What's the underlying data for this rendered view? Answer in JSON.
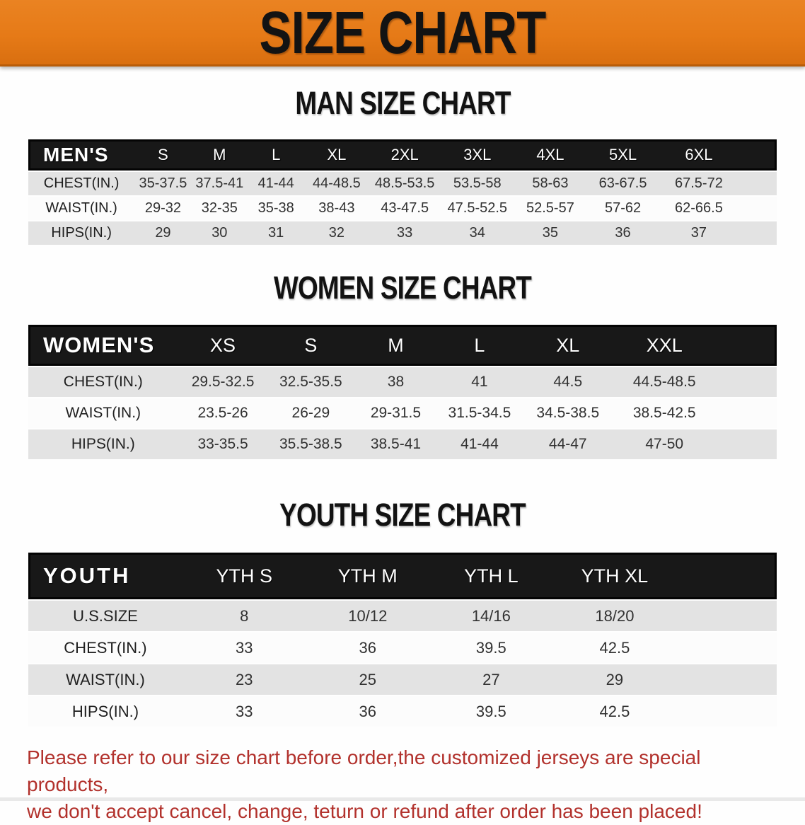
{
  "banner": {
    "title": "SIZE CHART",
    "bg_color": "#e67a17",
    "text_color": "#131313"
  },
  "sections": [
    {
      "id": "men",
      "heading": "MAN SIZE CHART",
      "label": "MEN'S",
      "columns": [
        "S",
        "M",
        "L",
        "XL",
        "2XL",
        "3XL",
        "4XL",
        "5XL",
        "6XL"
      ],
      "rows": [
        {
          "label": "CHEST(IN.)",
          "values": [
            "35-37.5",
            "37.5-41",
            "41-44",
            "44-48.5",
            "48.5-53.5",
            "53.5-58",
            "58-63",
            "63-67.5",
            "67.5-72"
          ]
        },
        {
          "label": "WAIST(IN.)",
          "values": [
            "29-32",
            "32-35",
            "35-38",
            "38-43",
            "43-47.5",
            "47.5-52.5",
            "52.5-57",
            "57-62",
            "62-66.5"
          ]
        },
        {
          "label": "HIPS(IN.)",
          "values": [
            "29",
            "30",
            "31",
            "32",
            "33",
            "34",
            "35",
            "36",
            "37"
          ]
        }
      ]
    },
    {
      "id": "women",
      "heading": "WOMEN SIZE CHART",
      "label": "WOMEN'S",
      "columns": [
        "XS",
        "S",
        "M",
        "L",
        "XL",
        "XXL"
      ],
      "rows": [
        {
          "label": "CHEST(IN.)",
          "values": [
            "29.5-32.5",
            "32.5-35.5",
            "38",
            "41",
            "44.5",
            "44.5-48.5"
          ]
        },
        {
          "label": "WAIST(IN.)",
          "values": [
            "23.5-26",
            "26-29",
            "29-31.5",
            "31.5-34.5",
            "34.5-38.5",
            "38.5-42.5"
          ]
        },
        {
          "label": "HIPS(IN.)",
          "values": [
            "33-35.5",
            "35.5-38.5",
            "38.5-41",
            "41-44",
            "44-47",
            "47-50"
          ]
        }
      ]
    },
    {
      "id": "youth",
      "heading": "YOUTH SIZE CHART",
      "label": "YOUTH",
      "columns": [
        "YTH S",
        "YTH M",
        "YTH L",
        "YTH XL"
      ],
      "rows": [
        {
          "label": "U.S.SIZE",
          "values": [
            "8",
            "10/12",
            "14/16",
            "18/20"
          ]
        },
        {
          "label": "CHEST(IN.)",
          "values": [
            "33",
            "36",
            "39.5",
            "42.5"
          ]
        },
        {
          "label": "WAIST(IN.)",
          "values": [
            "23",
            "25",
            "27",
            "29"
          ]
        },
        {
          "label": "HIPS(IN.)",
          "values": [
            "33",
            "36",
            "39.5",
            "42.5"
          ]
        }
      ]
    }
  ],
  "footer": {
    "line1": "Please refer to our size chart before order,the customized jerseys are special products,",
    "line2": "we don't accept cancel, change, teturn or refund after order has been placed!",
    "text_color": "#b2312c"
  }
}
